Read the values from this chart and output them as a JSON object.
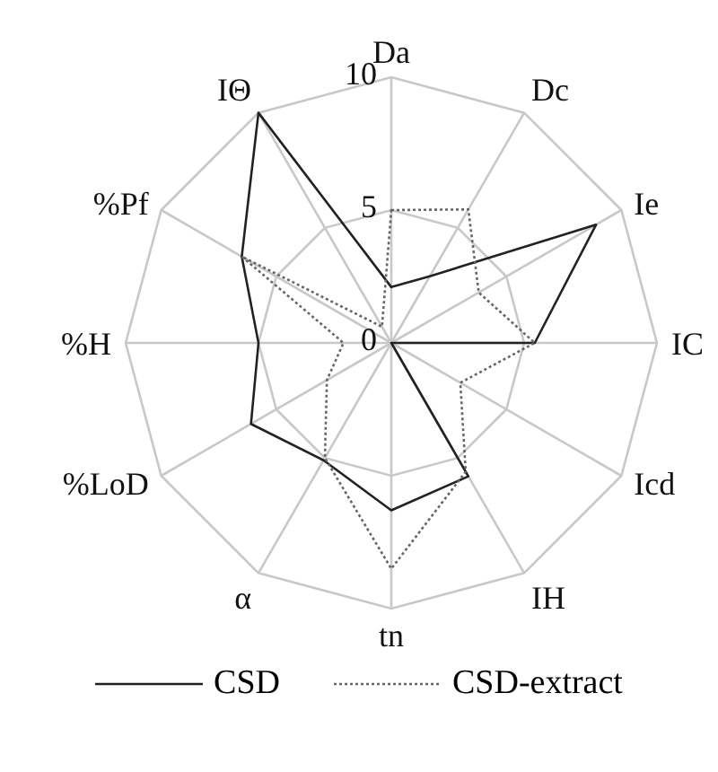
{
  "chart_data": {
    "type": "radar",
    "categories": [
      "Da",
      "Dc",
      "Ie",
      "IC",
      "Icd",
      "IH",
      "tn",
      "α",
      "%LoD",
      "%H",
      "%Pf",
      "IΘ"
    ],
    "series": [
      {
        "name": "CSD",
        "color": "#222222",
        "line_style": "solid",
        "values": [
          2.1,
          2.9,
          8.9,
          5.4,
          0,
          5.8,
          6.3,
          5.1,
          6.1,
          5.0,
          6.5,
          10
        ]
      },
      {
        "name": "CSD-extract",
        "color": "#666666",
        "line_style": "dotted",
        "values": [
          5.0,
          5.8,
          3.8,
          5.4,
          3.0,
          5.6,
          8.5,
          5.0,
          2.8,
          1.8,
          6.5,
          0.7
        ]
      }
    ],
    "ylim": [
      0,
      10
    ],
    "yticks": [
      0,
      5,
      10
    ],
    "grid": true,
    "legend": "bottom",
    "marker": "none"
  }
}
